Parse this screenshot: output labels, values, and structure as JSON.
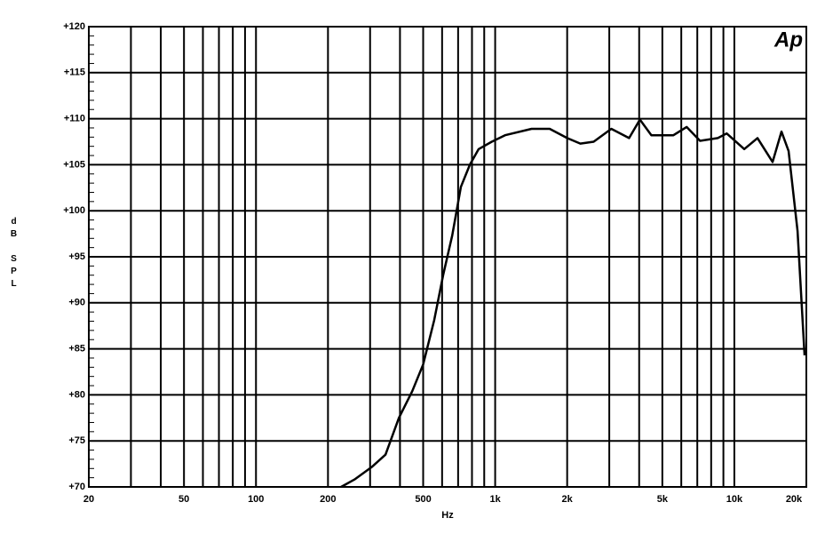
{
  "chart_data": {
    "type": "line",
    "annotation": "Ap",
    "x_label": "Hz",
    "y_label": "dB SPL",
    "xscale": "log",
    "grid": true,
    "color": "#000000",
    "xlim": [
      20,
      20000
    ],
    "ylim": [
      70,
      120
    ],
    "xticks": [
      20,
      50,
      100,
      200,
      500,
      {
        "value": 1000,
        "label": "1k"
      },
      {
        "value": 2000,
        "label": "2k"
      },
      {
        "value": 5000,
        "label": "5k"
      },
      {
        "value": 10000,
        "label": "10k"
      },
      {
        "value": 20000,
        "label": "20k"
      }
    ],
    "minor_xticks": [
      30,
      40,
      60,
      70,
      80,
      90,
      300,
      400,
      600,
      700,
      800,
      900,
      3000,
      4000,
      6000,
      7000,
      8000,
      9000
    ],
    "yticks": [
      {
        "value": 70,
        "label": "+70"
      },
      {
        "value": 75,
        "label": "+75"
      },
      {
        "value": 80,
        "label": "+80"
      },
      {
        "value": 85,
        "label": "+85"
      },
      {
        "value": 90,
        "label": "+90"
      },
      {
        "value": 95,
        "label": "+95"
      },
      {
        "value": 100,
        "label": "+100"
      },
      {
        "value": 105,
        "label": "+105"
      },
      {
        "value": 110,
        "label": "+110"
      },
      {
        "value": 115,
        "label": "+115"
      },
      {
        "value": 120,
        "label": "+120"
      }
    ],
    "x": [
      227,
      258,
      306,
      348,
      396,
      450,
      500,
      556,
      606,
      661,
      719,
      784,
      853,
      968,
      1100,
      1420,
      1690,
      2000,
      2270,
      2580,
      3060,
      3630,
      4030,
      4500,
      5560,
      6320,
      7190,
      8530,
      9290,
      11000,
      12500,
      14450,
      15740,
      16860,
      18370,
      19660
    ],
    "values": [
      70,
      70.8,
      72.2,
      73.5,
      77.5,
      80.4,
      83.3,
      88.1,
      93,
      97.3,
      102.6,
      105,
      106.7,
      107.5,
      108.2,
      108.9,
      108.9,
      107.9,
      107.3,
      107.5,
      108.9,
      107.9,
      109.9,
      108.2,
      108.2,
      109.1,
      107.6,
      107.9,
      108.4,
      106.7,
      107.9,
      105.3,
      108.6,
      106.5,
      97.8,
      84.3
    ]
  }
}
